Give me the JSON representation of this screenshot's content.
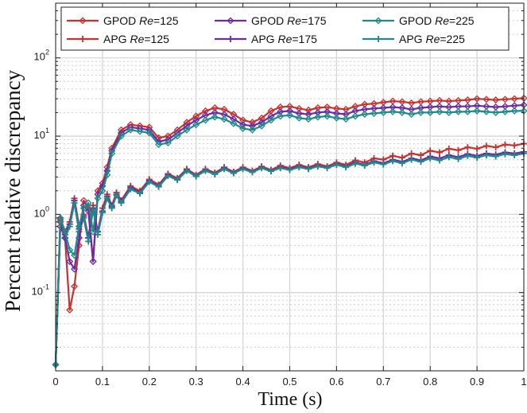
{
  "chart_data": {
    "type": "line",
    "xlabel": "Time (s)",
    "ylabel": "Percent relative discrepancy",
    "xlim": [
      0,
      1
    ],
    "ylim": [
      0.01,
      500
    ],
    "yscale": "log",
    "grid": true,
    "legend_position": "top",
    "x_ticks": [
      "0",
      "0.1",
      "0.2",
      "0.3",
      "0.4",
      "0.5",
      "0.6",
      "0.7",
      "0.8",
      "0.9",
      "1"
    ],
    "y_tick_base": "10",
    "y_ticks": [
      {
        "value": 0.1,
        "exp": "-1"
      },
      {
        "value": 1,
        "exp": "0"
      },
      {
        "value": 10,
        "exp": "1"
      },
      {
        "value": 100,
        "exp": "2"
      }
    ],
    "colors": {
      "re125": "#c8322f",
      "re175": "#6a2ca0",
      "re225": "#1f8a8a",
      "grid": "#d6d6d6",
      "axis": "#222222"
    },
    "legend": [
      {
        "method": "GPOD",
        "re_symbol": "Re",
        "re_value": "=125",
        "color_key": "re125",
        "marker": "diamond"
      },
      {
        "method": "GPOD",
        "re_symbol": "Re",
        "re_value": "=175",
        "color_key": "re175",
        "marker": "diamond"
      },
      {
        "method": "GPOD",
        "re_symbol": "Re",
        "re_value": "=225",
        "color_key": "re225",
        "marker": "diamond"
      },
      {
        "method": "APG",
        "re_symbol": "Re",
        "re_value": "=125",
        "color_key": "re125",
        "marker": "plus"
      },
      {
        "method": "APG",
        "re_symbol": "Re",
        "re_value": "=175",
        "color_key": "re175",
        "marker": "plus"
      },
      {
        "method": "APG",
        "re_symbol": "Re",
        "re_value": "=225",
        "color_key": "re225",
        "marker": "plus"
      }
    ],
    "series": [
      {
        "name": "GPOD Re=125",
        "color_key": "re125",
        "marker": "diamond",
        "x": [
          0,
          0.01,
          0.02,
          0.03,
          0.04,
          0.05,
          0.06,
          0.07,
          0.08,
          0.09,
          0.1,
          0.11,
          0.12,
          0.14,
          0.16,
          0.18,
          0.2,
          0.22,
          0.24,
          0.26,
          0.28,
          0.3,
          0.32,
          0.34,
          0.36,
          0.38,
          0.4,
          0.42,
          0.44,
          0.46,
          0.48,
          0.5,
          0.52,
          0.54,
          0.56,
          0.58,
          0.6,
          0.62,
          0.64,
          0.66,
          0.68,
          0.7,
          0.72,
          0.74,
          0.76,
          0.78,
          0.8,
          0.82,
          0.84,
          0.86,
          0.88,
          0.9,
          0.92,
          0.94,
          0.96,
          0.98,
          1.0
        ],
        "y": [
          0.012,
          0.8,
          0.5,
          0.06,
          0.12,
          0.4,
          1.5,
          1.2,
          0.25,
          2.0,
          2.5,
          4.0,
          7.0,
          12.0,
          14.0,
          13.5,
          13.0,
          9.5,
          10.0,
          12.0,
          15.0,
          18.0,
          21.0,
          23.0,
          22.0,
          19.0,
          16.0,
          15.0,
          17.0,
          21.0,
          23.5,
          24.0,
          22.5,
          21.5,
          23.0,
          23.5,
          22.5,
          22.0,
          24.0,
          25.5,
          26.0,
          27.0,
          28.0,
          27.5,
          26.5,
          27.5,
          28.0,
          28.5,
          28.0,
          28.5,
          29.0,
          30.0,
          29.5,
          29.0,
          29.5,
          30.0,
          30.5
        ]
      },
      {
        "name": "GPOD Re=175",
        "color_key": "re175",
        "marker": "diamond",
        "x": [
          0,
          0.01,
          0.02,
          0.03,
          0.04,
          0.05,
          0.06,
          0.07,
          0.08,
          0.09,
          0.1,
          0.11,
          0.12,
          0.14,
          0.16,
          0.18,
          0.2,
          0.22,
          0.24,
          0.26,
          0.28,
          0.3,
          0.32,
          0.34,
          0.36,
          0.38,
          0.4,
          0.42,
          0.44,
          0.46,
          0.48,
          0.5,
          0.52,
          0.54,
          0.56,
          0.58,
          0.6,
          0.62,
          0.64,
          0.66,
          0.68,
          0.7,
          0.72,
          0.74,
          0.76,
          0.78,
          0.8,
          0.82,
          0.84,
          0.86,
          0.88,
          0.9,
          0.92,
          0.94,
          0.96,
          0.98,
          1.0
        ],
        "y": [
          0.012,
          0.7,
          0.5,
          0.25,
          0.2,
          0.5,
          1.3,
          1.1,
          0.25,
          1.8,
          2.3,
          3.6,
          6.5,
          11.0,
          13.0,
          12.5,
          12.0,
          8.5,
          9.0,
          11.0,
          13.5,
          16.0,
          18.5,
          20.0,
          19.0,
          16.5,
          14.0,
          13.5,
          15.0,
          18.0,
          20.5,
          21.0,
          19.5,
          19.0,
          20.0,
          20.5,
          19.5,
          19.0,
          21.0,
          22.0,
          22.5,
          23.0,
          23.5,
          23.0,
          22.0,
          23.0,
          23.5,
          24.0,
          23.5,
          24.0,
          24.0,
          24.5,
          24.0,
          23.5,
          24.0,
          24.5,
          25.0
        ]
      },
      {
        "name": "GPOD Re=225",
        "color_key": "re225",
        "marker": "diamond",
        "x": [
          0,
          0.01,
          0.02,
          0.03,
          0.04,
          0.05,
          0.06,
          0.07,
          0.08,
          0.09,
          0.1,
          0.11,
          0.12,
          0.14,
          0.16,
          0.18,
          0.2,
          0.22,
          0.24,
          0.26,
          0.28,
          0.3,
          0.32,
          0.34,
          0.36,
          0.38,
          0.4,
          0.42,
          0.44,
          0.46,
          0.48,
          0.5,
          0.52,
          0.54,
          0.56,
          0.58,
          0.6,
          0.62,
          0.64,
          0.66,
          0.68,
          0.7,
          0.72,
          0.74,
          0.76,
          0.78,
          0.8,
          0.82,
          0.84,
          0.86,
          0.88,
          0.9,
          0.92,
          0.94,
          0.96,
          0.98,
          1.0
        ],
        "y": [
          0.012,
          0.9,
          0.6,
          0.35,
          0.3,
          0.7,
          1.2,
          1.4,
          0.6,
          1.6,
          2.0,
          3.2,
          6.0,
          10.0,
          12.0,
          11.5,
          11.0,
          7.8,
          8.2,
          10.0,
          12.0,
          14.0,
          16.0,
          17.5,
          16.5,
          14.5,
          12.5,
          12.0,
          13.5,
          16.0,
          18.0,
          18.5,
          17.0,
          16.5,
          17.5,
          18.0,
          17.0,
          16.5,
          18.0,
          19.0,
          19.5,
          20.0,
          20.5,
          20.0,
          19.0,
          20.0,
          20.0,
          20.5,
          20.0,
          20.5,
          20.5,
          21.0,
          20.5,
          20.0,
          20.5,
          21.0,
          21.0
        ]
      },
      {
        "name": "APG Re=125",
        "color_key": "re125",
        "marker": "plus",
        "x": [
          0,
          0.01,
          0.02,
          0.03,
          0.04,
          0.05,
          0.06,
          0.07,
          0.08,
          0.09,
          0.1,
          0.11,
          0.12,
          0.13,
          0.14,
          0.16,
          0.18,
          0.2,
          0.22,
          0.24,
          0.26,
          0.28,
          0.3,
          0.32,
          0.34,
          0.36,
          0.38,
          0.4,
          0.42,
          0.44,
          0.46,
          0.48,
          0.5,
          0.52,
          0.54,
          0.56,
          0.58,
          0.6,
          0.62,
          0.64,
          0.66,
          0.68,
          0.7,
          0.72,
          0.74,
          0.76,
          0.78,
          0.8,
          0.82,
          0.84,
          0.86,
          0.88,
          0.9,
          0.92,
          0.94,
          0.96,
          0.98,
          1.0
        ],
        "y": [
          0.012,
          0.9,
          0.6,
          0.8,
          1.6,
          0.7,
          1.0,
          0.5,
          1.3,
          0.6,
          1.2,
          1.8,
          1.3,
          1.9,
          1.5,
          2.3,
          2.0,
          2.8,
          2.4,
          3.3,
          2.9,
          3.8,
          3.2,
          3.8,
          3.4,
          4.0,
          3.5,
          4.0,
          3.6,
          4.1,
          3.7,
          4.2,
          3.9,
          4.3,
          4.0,
          4.4,
          4.1,
          4.6,
          4.3,
          4.9,
          4.6,
          5.2,
          5.0,
          5.6,
          5.3,
          6.0,
          5.7,
          6.5,
          6.2,
          6.9,
          6.6,
          7.2,
          6.9,
          7.5,
          7.2,
          7.8,
          7.6,
          8.0
        ]
      },
      {
        "name": "APG Re=175",
        "color_key": "re175",
        "marker": "plus",
        "x": [
          0,
          0.01,
          0.02,
          0.03,
          0.04,
          0.05,
          0.06,
          0.07,
          0.08,
          0.09,
          0.1,
          0.11,
          0.12,
          0.13,
          0.14,
          0.16,
          0.18,
          0.2,
          0.22,
          0.24,
          0.26,
          0.28,
          0.3,
          0.32,
          0.34,
          0.36,
          0.38,
          0.4,
          0.42,
          0.44,
          0.46,
          0.48,
          0.5,
          0.52,
          0.54,
          0.56,
          0.58,
          0.6,
          0.62,
          0.64,
          0.66,
          0.68,
          0.7,
          0.72,
          0.74,
          0.76,
          0.78,
          0.8,
          0.82,
          0.84,
          0.86,
          0.88,
          0.9,
          0.92,
          0.94,
          0.96,
          0.98,
          1.0
        ],
        "y": [
          0.012,
          0.85,
          0.55,
          0.75,
          1.5,
          0.65,
          0.95,
          0.5,
          1.2,
          0.6,
          1.1,
          1.7,
          1.25,
          1.8,
          1.45,
          2.2,
          1.9,
          2.7,
          2.3,
          3.2,
          2.8,
          3.7,
          3.1,
          3.7,
          3.3,
          3.9,
          3.4,
          3.9,
          3.5,
          4.0,
          3.6,
          4.0,
          3.8,
          4.1,
          3.9,
          4.2,
          4.0,
          4.4,
          4.1,
          4.6,
          4.3,
          4.8,
          4.5,
          5.0,
          4.7,
          5.2,
          4.9,
          5.5,
          5.2,
          5.7,
          5.4,
          5.9,
          5.6,
          6.0,
          5.8,
          6.2,
          6.0,
          6.3
        ]
      },
      {
        "name": "APG Re=225",
        "color_key": "re225",
        "marker": "plus",
        "x": [
          0,
          0.01,
          0.02,
          0.03,
          0.04,
          0.05,
          0.06,
          0.07,
          0.08,
          0.09,
          0.1,
          0.11,
          0.12,
          0.13,
          0.14,
          0.16,
          0.18,
          0.2,
          0.22,
          0.24,
          0.26,
          0.28,
          0.3,
          0.32,
          0.34,
          0.36,
          0.38,
          0.4,
          0.42,
          0.44,
          0.46,
          0.48,
          0.5,
          0.52,
          0.54,
          0.56,
          0.58,
          0.6,
          0.62,
          0.64,
          0.66,
          0.68,
          0.7,
          0.72,
          0.74,
          0.76,
          0.78,
          0.8,
          0.82,
          0.84,
          0.86,
          0.88,
          0.9,
          0.92,
          0.94,
          0.96,
          0.98,
          1.0
        ],
        "y": [
          0.012,
          0.8,
          0.5,
          0.7,
          1.4,
          0.6,
          0.9,
          0.45,
          1.15,
          0.55,
          1.05,
          1.6,
          1.2,
          1.75,
          1.4,
          2.1,
          1.85,
          2.6,
          2.25,
          3.1,
          2.75,
          3.6,
          3.05,
          3.6,
          3.25,
          3.8,
          3.35,
          3.8,
          3.45,
          3.9,
          3.55,
          3.9,
          3.7,
          4.0,
          3.8,
          4.1,
          3.9,
          4.3,
          4.0,
          4.45,
          4.2,
          4.6,
          4.35,
          4.8,
          4.5,
          5.0,
          4.7,
          5.2,
          4.9,
          5.4,
          5.1,
          5.6,
          5.3,
          5.7,
          5.5,
          5.9,
          5.7,
          6.0
        ]
      }
    ]
  }
}
